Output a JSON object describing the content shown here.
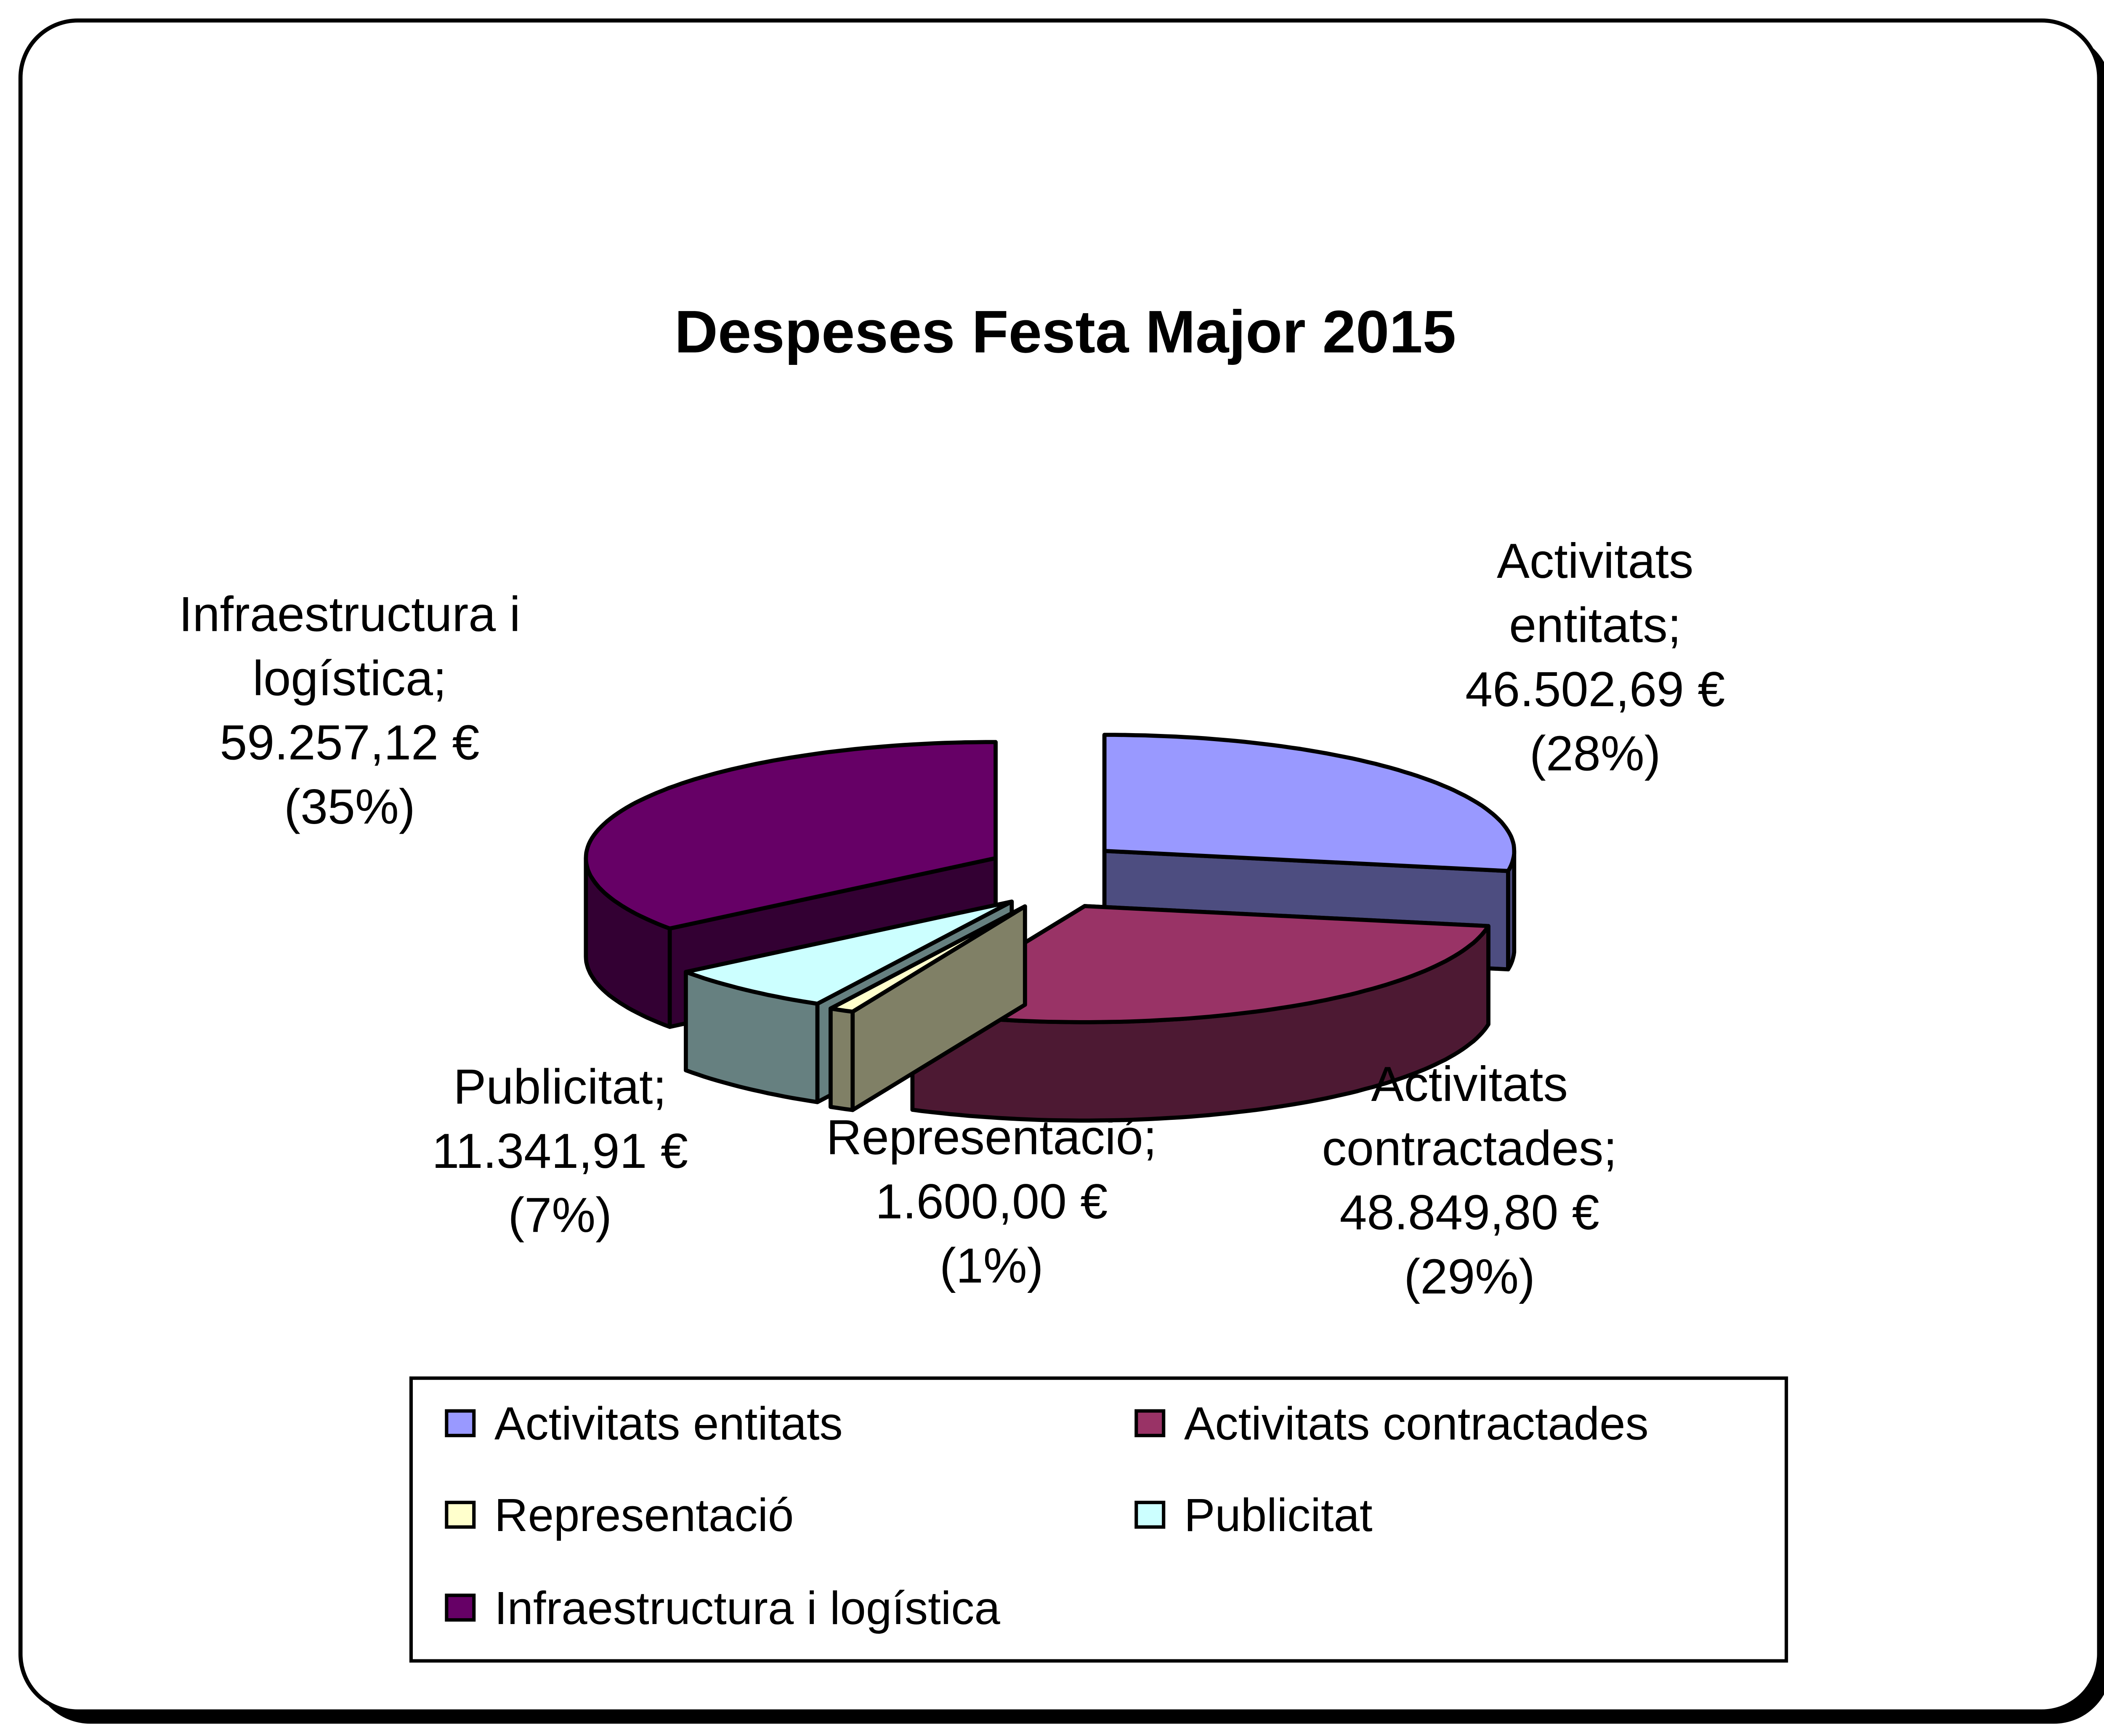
{
  "chart_data": {
    "type": "pie",
    "style": "3d-exploded",
    "title": "Despeses Festa Major 2015",
    "legend_position": "bottom",
    "slices": [
      {
        "name": "Activitats entitats",
        "value": 46502.69,
        "value_label": "46.502,69 €",
        "percent_label": "(28%)",
        "label_lines": [
          "Activitats",
          "entitats;"
        ],
        "color": "#9999FF",
        "side_color": "#4D4D80"
      },
      {
        "name": "Activitats contractades",
        "value": 48849.8,
        "value_label": "48.849,80 €",
        "percent_label": "(29%)",
        "label_lines": [
          "Activitats",
          "contractades;"
        ],
        "color": "#993366",
        "side_color": "#4D1933"
      },
      {
        "name": "Representació",
        "value": 1600.0,
        "value_label": "1.600,00 €",
        "percent_label": "(1%)",
        "label_lines": [
          "Representació;"
        ],
        "color": "#FFFFCC",
        "side_color": "#808066"
      },
      {
        "name": "Publicitat",
        "value": 11341.91,
        "value_label": "11.341,91 €",
        "percent_label": "(7%)",
        "label_lines": [
          "Publicitat;"
        ],
        "color": "#CCFFFF",
        "side_color": "#668080"
      },
      {
        "name": "Infraestructura i logística",
        "value": 59257.12,
        "value_label": "59.257,12 €",
        "percent_label": "(35%)",
        "label_lines": [
          "Infraestructura i",
          "logística;"
        ],
        "color": "#660066",
        "side_color": "#330033"
      }
    ]
  }
}
